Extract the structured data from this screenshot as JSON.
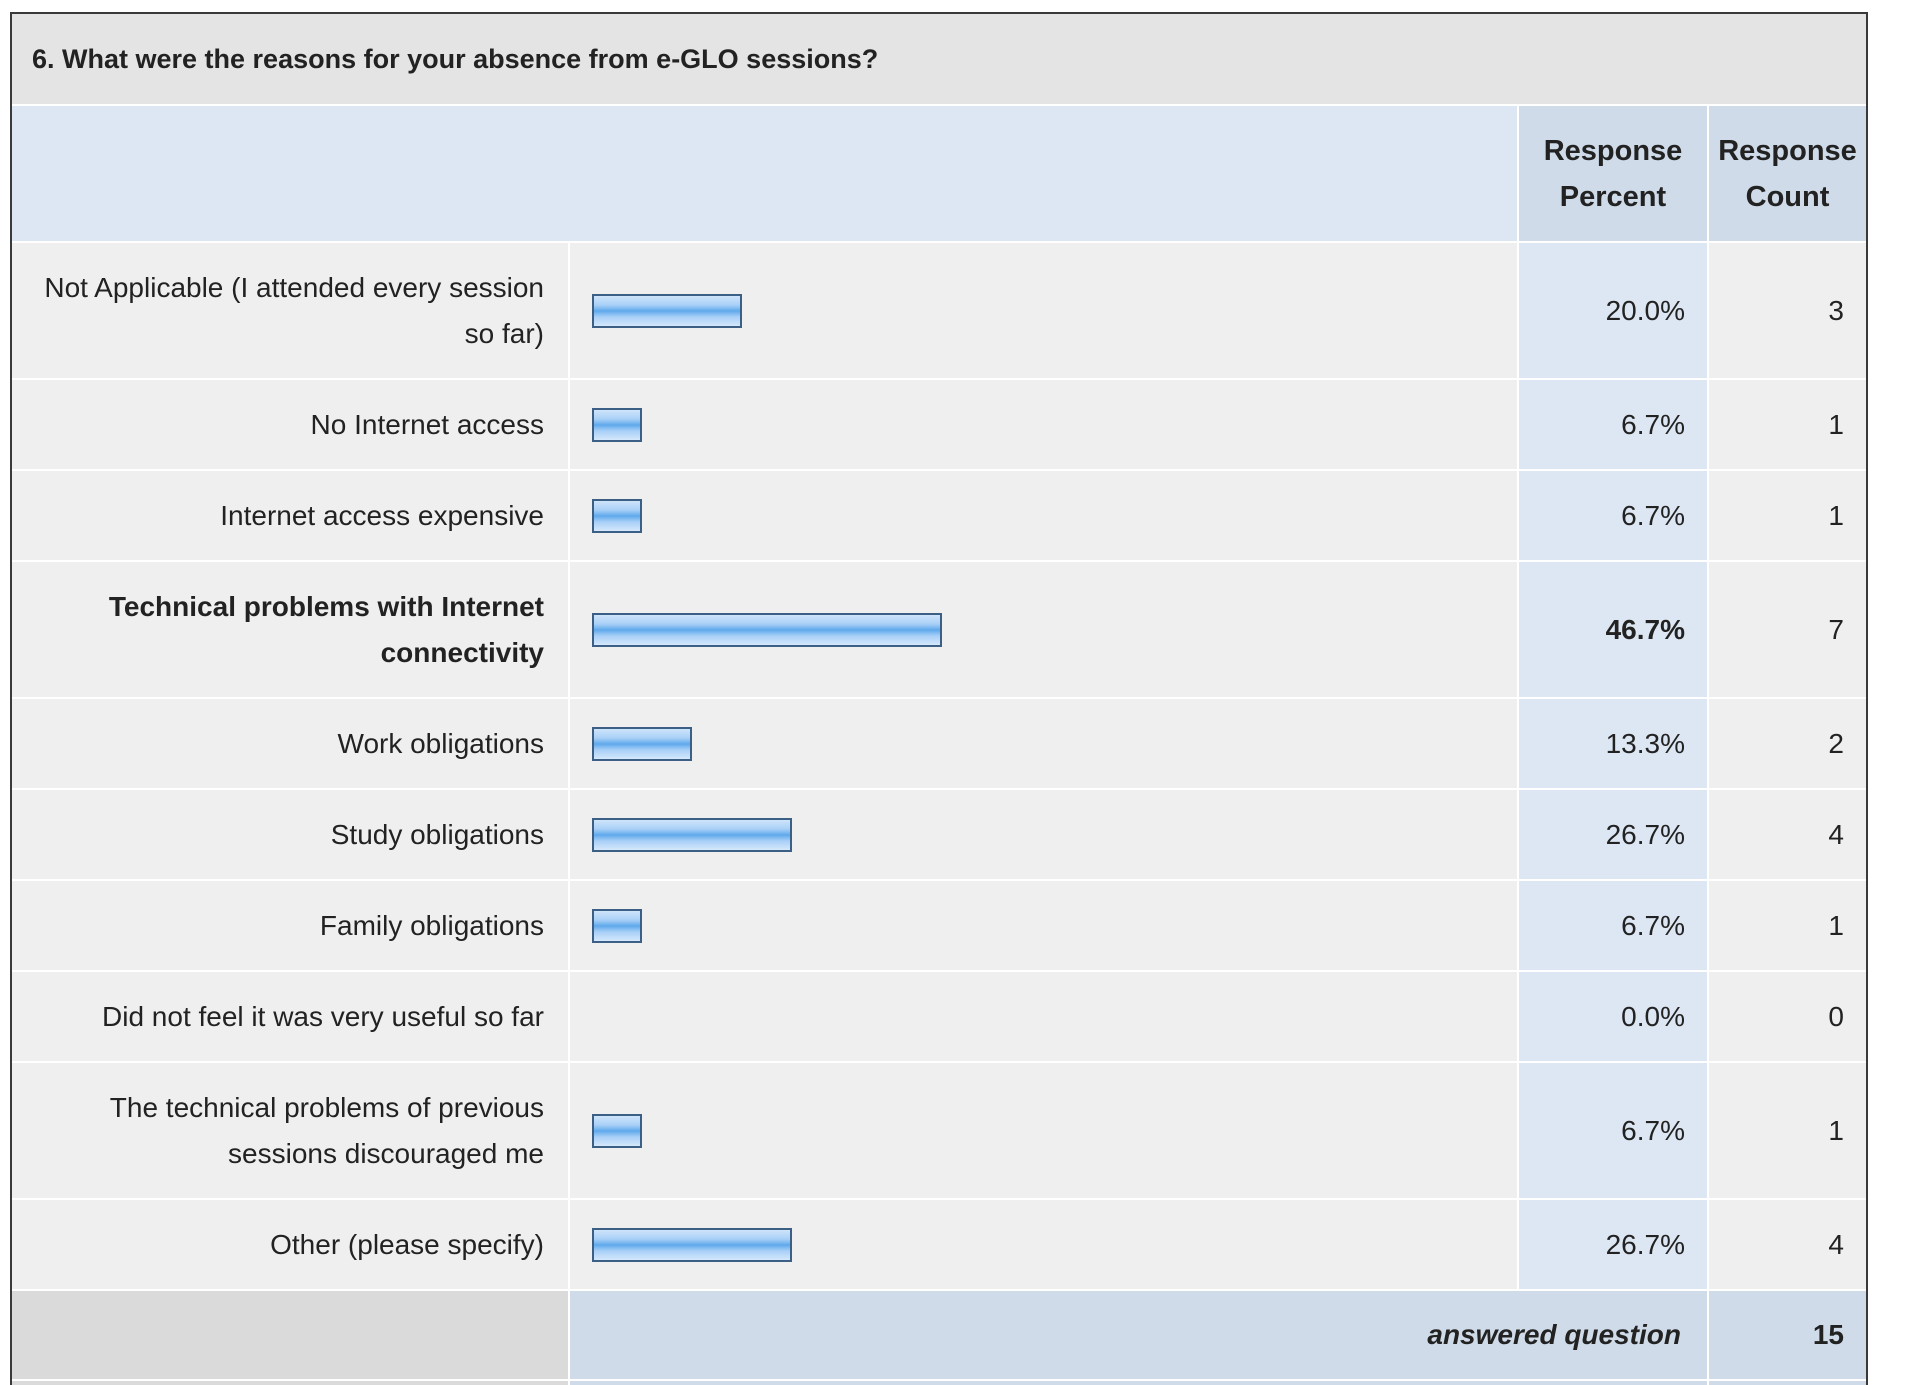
{
  "question": {
    "title": "6. What were the reasons for your absence from e-GLO sessions?"
  },
  "headers": {
    "response_percent": "Response Percent",
    "response_count": "Response Count"
  },
  "colors": {
    "bar_fill": "#7fbaf0",
    "bar_border": "#3c5f86",
    "header_bg": "#dde7f3",
    "row_bg": "#efefef"
  },
  "rows": [
    {
      "label": "Not Applicable (I attended every session so far)",
      "percent": "20.0%",
      "count": "3",
      "value": 20.0
    },
    {
      "label": "No Internet access",
      "percent": "6.7%",
      "count": "1",
      "value": 6.7
    },
    {
      "label": "Internet access expensive",
      "percent": "6.7%",
      "count": "1",
      "value": 6.7
    },
    {
      "label": "Technical problems with Internet connectivity",
      "percent": "46.7%",
      "count": "7",
      "value": 46.7
    },
    {
      "label": "Work obligations",
      "percent": "13.3%",
      "count": "2",
      "value": 13.3
    },
    {
      "label": "Study obligations",
      "percent": "26.7%",
      "count": "4",
      "value": 26.7
    },
    {
      "label": "Family obligations",
      "percent": "6.7%",
      "count": "1",
      "value": 6.7
    },
    {
      "label": "Did not feel it was very useful so far",
      "percent": "0.0%",
      "count": "0",
      "value": 0.0
    },
    {
      "label": "The technical problems of previous sessions discouraged me",
      "percent": "6.7%",
      "count": "1",
      "value": 6.7
    },
    {
      "label": "Other (please specify)",
      "percent": "26.7%",
      "count": "4",
      "value": 26.7
    }
  ],
  "summary": {
    "answered_label": "answered question",
    "answered_value": "15"
  },
  "chart_data": {
    "type": "bar",
    "orientation": "horizontal",
    "title": "6. What were the reasons for your absence from e-GLO sessions?",
    "categories": [
      "Not Applicable (I attended every session so far)",
      "No Internet access",
      "Internet access expensive",
      "Technical problems with Internet connectivity",
      "Work obligations",
      "Study obligations",
      "Family obligations",
      "Did not feel it was very useful so far",
      "The technical problems of previous sessions discouraged me",
      "Other (please specify)"
    ],
    "values": [
      20.0,
      6.7,
      6.7,
      46.7,
      13.3,
      26.7,
      6.7,
      0.0,
      6.7,
      26.7
    ],
    "counts": [
      3,
      1,
      1,
      7,
      2,
      4,
      1,
      0,
      1,
      4
    ],
    "xlim": [
      0,
      100
    ],
    "grid": false,
    "legend": "none"
  }
}
